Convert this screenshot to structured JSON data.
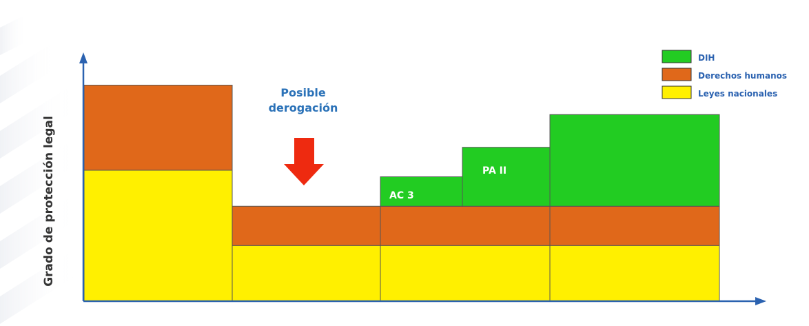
{
  "chart_data": {
    "type": "bar",
    "ylabel": "Grado de protección legal",
    "legend": {
      "position": "top-right",
      "entries": [
        {
          "label": "DIH",
          "color": "#22cc22"
        },
        {
          "label": "Derechos humanos",
          "color": "#e0681a"
        },
        {
          "label": "Leyes nacionales",
          "color": "#fff000"
        }
      ]
    },
    "annotation": {
      "text_line1": "Posible",
      "text_line2": "derogación",
      "color": "#2b72b8",
      "arrow_color": "#ee2a10"
    },
    "periods": [
      {
        "layers": {
          "leyes_nacionales": 2.0,
          "derechos_humanos": 1.3,
          "dih": 0
        }
      },
      {
        "layers": {
          "leyes_nacionales": 0.85,
          "derechos_humanos": 0.6,
          "dih": 0
        }
      },
      {
        "layers": {
          "leyes_nacionales": 0.85,
          "derechos_humanos": 0.6,
          "dih": 0.45
        }
      },
      {
        "layers": {
          "leyes_nacionales": 0.85,
          "derechos_humanos": 0.6,
          "dih": 1.4
        }
      }
    ],
    "step_labels": {
      "ac3": "AC 3",
      "pa2": "PA II"
    },
    "ylim": [
      0,
      3.8
    ]
  }
}
